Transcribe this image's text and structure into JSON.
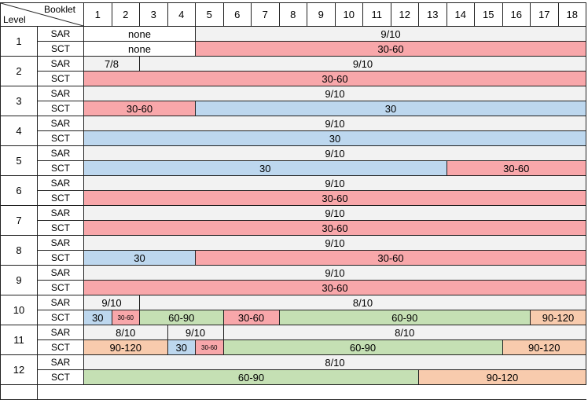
{
  "header": {
    "booklet_label": "Booklet",
    "level_label": "Level",
    "booklets": [
      "1",
      "2",
      "3",
      "4",
      "5",
      "6",
      "7",
      "8",
      "9",
      "10",
      "11",
      "12",
      "13",
      "14",
      "15",
      "16",
      "17",
      "18"
    ]
  },
  "colors": {
    "white": "#ffffff",
    "gray": "#f2f2f2",
    "pink": "#f8a7aa",
    "blue": "#bdd7ee",
    "green": "#c5e0b4",
    "orange": "#f8cbad"
  },
  "levels": [
    {
      "level": "1",
      "rows": [
        {
          "type": "SAR",
          "segments": [
            {
              "text": "none",
              "span": 4,
              "color": "white"
            },
            {
              "text": "9/10",
              "span": 14,
              "color": "gray"
            }
          ]
        },
        {
          "type": "SCT",
          "segments": [
            {
              "text": "none",
              "span": 4,
              "color": "white"
            },
            {
              "text": "30-60",
              "span": 14,
              "color": "pink"
            }
          ]
        }
      ]
    },
    {
      "level": "2",
      "rows": [
        {
          "type": "SAR",
          "segments": [
            {
              "text": "7/8",
              "span": 2,
              "color": "gray"
            },
            {
              "text": "9/10",
              "span": 16,
              "color": "gray"
            }
          ]
        },
        {
          "type": "SCT",
          "segments": [
            {
              "text": "30-60",
              "span": 18,
              "color": "pink"
            }
          ]
        }
      ]
    },
    {
      "level": "3",
      "rows": [
        {
          "type": "SAR",
          "segments": [
            {
              "text": "9/10",
              "span": 18,
              "color": "gray"
            }
          ]
        },
        {
          "type": "SCT",
          "segments": [
            {
              "text": "30-60",
              "span": 4,
              "color": "pink"
            },
            {
              "text": "30",
              "span": 14,
              "color": "blue"
            }
          ]
        }
      ]
    },
    {
      "level": "4",
      "rows": [
        {
          "type": "SAR",
          "segments": [
            {
              "text": "9/10",
              "span": 18,
              "color": "gray"
            }
          ]
        },
        {
          "type": "SCT",
          "segments": [
            {
              "text": "30",
              "span": 18,
              "color": "blue"
            }
          ]
        }
      ]
    },
    {
      "level": "5",
      "rows": [
        {
          "type": "SAR",
          "segments": [
            {
              "text": "9/10",
              "span": 18,
              "color": "gray"
            }
          ]
        },
        {
          "type": "SCT",
          "segments": [
            {
              "text": "30",
              "span": 13,
              "color": "blue"
            },
            {
              "text": "30-60",
              "span": 5,
              "color": "pink"
            }
          ]
        }
      ]
    },
    {
      "level": "6",
      "rows": [
        {
          "type": "SAR",
          "segments": [
            {
              "text": "9/10",
              "span": 18,
              "color": "gray"
            }
          ]
        },
        {
          "type": "SCT",
          "segments": [
            {
              "text": "30-60",
              "span": 18,
              "color": "pink"
            }
          ]
        }
      ]
    },
    {
      "level": "7",
      "rows": [
        {
          "type": "SAR",
          "segments": [
            {
              "text": "9/10",
              "span": 18,
              "color": "gray"
            }
          ]
        },
        {
          "type": "SCT",
          "segments": [
            {
              "text": "30-60",
              "span": 18,
              "color": "pink"
            }
          ]
        }
      ]
    },
    {
      "level": "8",
      "rows": [
        {
          "type": "SAR",
          "segments": [
            {
              "text": "9/10",
              "span": 18,
              "color": "gray"
            }
          ]
        },
        {
          "type": "SCT",
          "segments": [
            {
              "text": "30",
              "span": 4,
              "color": "blue"
            },
            {
              "text": "30-60",
              "span": 14,
              "color": "pink"
            }
          ]
        }
      ]
    },
    {
      "level": "9",
      "rows": [
        {
          "type": "SAR",
          "segments": [
            {
              "text": "9/10",
              "span": 18,
              "color": "gray"
            }
          ]
        },
        {
          "type": "SCT",
          "segments": [
            {
              "text": "30-60",
              "span": 18,
              "color": "pink"
            }
          ]
        }
      ]
    },
    {
      "level": "10",
      "rows": [
        {
          "type": "SAR",
          "segments": [
            {
              "text": "9/10",
              "span": 2,
              "color": "gray"
            },
            {
              "text": "8/10",
              "span": 16,
              "color": "gray"
            }
          ]
        },
        {
          "type": "SCT",
          "segments": [
            {
              "text": "30",
              "span": 1,
              "color": "blue"
            },
            {
              "text": "30-60",
              "span": 1,
              "color": "pink",
              "small": true
            },
            {
              "text": "60-90",
              "span": 3,
              "color": "green"
            },
            {
              "text": "30-60",
              "span": 2,
              "color": "pink"
            },
            {
              "text": "60-90",
              "span": 9,
              "color": "green"
            },
            {
              "text": "90-120",
              "span": 2,
              "color": "orange"
            }
          ]
        }
      ]
    },
    {
      "level": "11",
      "rows": [
        {
          "type": "SAR",
          "segments": [
            {
              "text": "8/10",
              "span": 3,
              "color": "gray"
            },
            {
              "text": "9/10",
              "span": 2,
              "color": "gray"
            },
            {
              "text": "8/10",
              "span": 13,
              "color": "gray"
            }
          ]
        },
        {
          "type": "SCT",
          "segments": [
            {
              "text": "90-120",
              "span": 3,
              "color": "orange"
            },
            {
              "text": "30",
              "span": 1,
              "color": "blue"
            },
            {
              "text": "30-60",
              "span": 1,
              "color": "pink",
              "small": true
            },
            {
              "text": "60-90",
              "span": 10,
              "color": "green"
            },
            {
              "text": "90-120",
              "span": 3,
              "color": "orange"
            }
          ]
        }
      ]
    },
    {
      "level": "12",
      "rows": [
        {
          "type": "SAR",
          "segments": [
            {
              "text": "8/10",
              "span": 18,
              "color": "gray"
            }
          ]
        },
        {
          "type": "SCT",
          "segments": [
            {
              "text": "60-90",
              "span": 12,
              "color": "green"
            },
            {
              "text": "90-120",
              "span": 6,
              "color": "orange"
            }
          ]
        }
      ]
    }
  ]
}
